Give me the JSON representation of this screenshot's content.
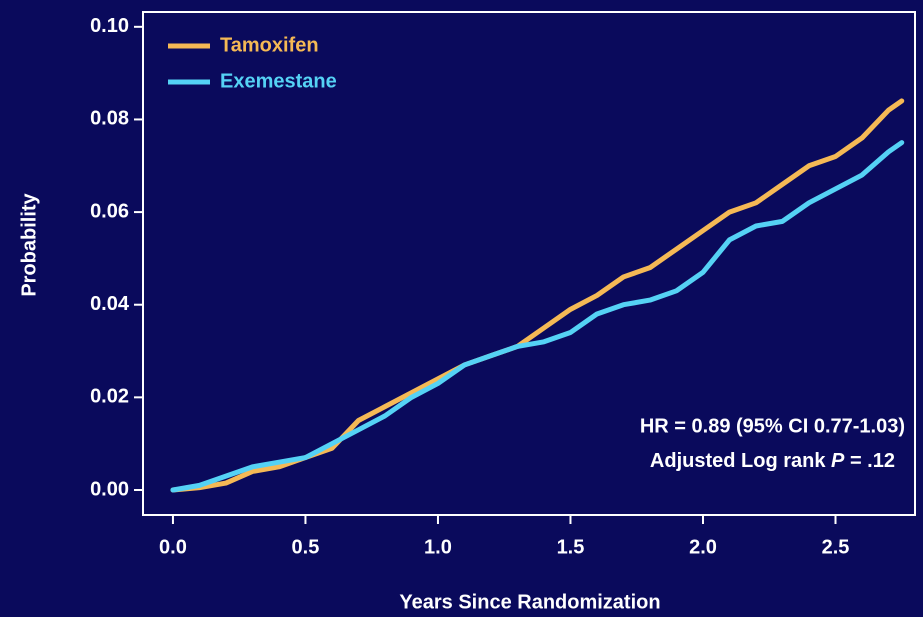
{
  "chart_data": {
    "type": "line",
    "xlabel": "Years Since Randomization",
    "ylabel": "Probability",
    "xlim": [
      -0.113,
      2.8
    ],
    "ylim": [
      -0.0054,
      0.1032
    ],
    "xticks": [
      {
        "value": 0,
        "label": "0.0"
      },
      0.5,
      {
        "value": 1,
        "label": "1.0"
      },
      1.5,
      {
        "value": 2,
        "label": "2.0"
      },
      2.5
    ],
    "yticks": [
      {
        "value": 0,
        "label": "0.00"
      },
      {
        "value": 0.02,
        "label": "0.02"
      },
      {
        "value": 0.04,
        "label": "0.04"
      },
      {
        "value": 0.06,
        "label": "0.06"
      },
      {
        "value": 0.08,
        "label": "0.08"
      },
      {
        "value": 0.1,
        "label": "0.10"
      }
    ],
    "x": [
      0,
      0.1,
      0.2,
      0.3,
      0.4,
      0.5,
      0.6,
      0.7,
      0.8,
      0.9,
      1.0,
      1.1,
      1.2,
      1.3,
      1.4,
      1.5,
      1.6,
      1.7,
      1.8,
      1.9,
      2.0,
      2.1,
      2.2,
      2.3,
      2.4,
      2.5,
      2.6,
      2.7,
      2.75
    ],
    "series": [
      {
        "name": "Tamoxifen",
        "color": "#f5b955",
        "values": [
          0,
          0.0005,
          0.0015,
          0.004,
          0.005,
          0.007,
          0.009,
          0.015,
          0.018,
          0.021,
          0.024,
          0.027,
          0.029,
          0.031,
          0.035,
          0.039,
          0.042,
          0.046,
          0.048,
          0.052,
          0.056,
          0.06,
          0.062,
          0.066,
          0.07,
          0.072,
          0.076,
          0.082,
          0.084
        ]
      },
      {
        "name": "Exemestane",
        "color": "#55d2f5",
        "values": [
          0,
          0.001,
          0.003,
          0.005,
          0.006,
          0.007,
          0.01,
          0.013,
          0.016,
          0.02,
          0.023,
          0.027,
          0.029,
          0.031,
          0.032,
          0.034,
          0.038,
          0.04,
          0.041,
          0.043,
          0.047,
          0.054,
          0.057,
          0.058,
          0.062,
          0.065,
          0.068,
          0.073,
          0.075
        ]
      }
    ],
    "annotations": [
      "HR = 0.89 (95% CI 0.77-1.03)",
      "Adjusted Log rank ",
      "P",
      " = .12"
    ],
    "legend": "upper left",
    "background": "#0a0a5c"
  }
}
